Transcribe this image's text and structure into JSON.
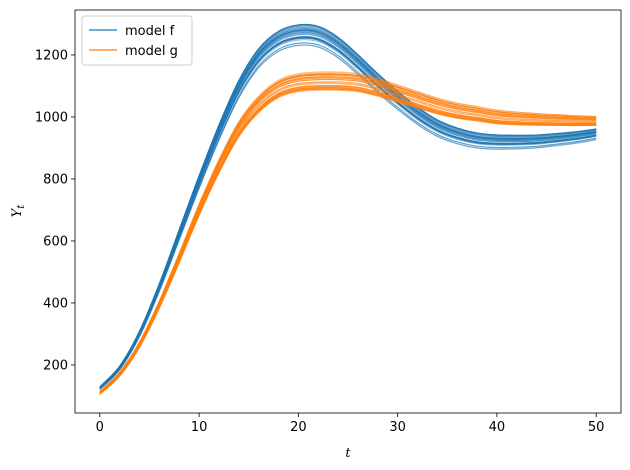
{
  "chart_data": {
    "type": "line",
    "xlabel": "t",
    "ylabel_main": "Y",
    "ylabel_sub": "t",
    "xlim": [
      -2.5,
      52.5
    ],
    "ylim": [
      45,
      1345
    ],
    "xticks": [
      0,
      10,
      20,
      30,
      40,
      50
    ],
    "yticks": [
      200,
      400,
      600,
      800,
      1000,
      1200
    ],
    "legend": {
      "placement": "top-left"
    },
    "colors": {
      "f": "#1f77b4",
      "g": "#ff7f0e"
    },
    "series": [
      {
        "name": "model f",
        "color": "#1f77b4",
        "x": [
          0,
          2,
          4,
          6,
          8,
          10,
          12,
          14,
          16,
          18,
          20,
          22,
          24,
          26,
          28,
          30,
          32,
          34,
          36,
          38,
          40,
          42,
          44,
          46,
          48,
          50
        ],
        "values": [
          125,
          190,
          300,
          450,
          620,
          790,
          950,
          1090,
          1190,
          1245,
          1265,
          1260,
          1225,
          1170,
          1110,
          1055,
          1005,
          965,
          940,
          925,
          920,
          920,
          922,
          928,
          935,
          945
        ]
      },
      {
        "name": "model g",
        "color": "#ff7f0e",
        "x": [
          0,
          2,
          4,
          6,
          8,
          10,
          12,
          14,
          16,
          18,
          20,
          22,
          24,
          26,
          28,
          30,
          32,
          34,
          36,
          38,
          40,
          42,
          44,
          46,
          48,
          50
        ],
        "values": [
          110,
          170,
          265,
          395,
          545,
          700,
          840,
          960,
          1040,
          1090,
          1110,
          1115,
          1115,
          1110,
          1095,
          1075,
          1055,
          1035,
          1020,
          1010,
          1000,
          995,
          992,
          990,
          988,
          987
        ]
      }
    ]
  }
}
